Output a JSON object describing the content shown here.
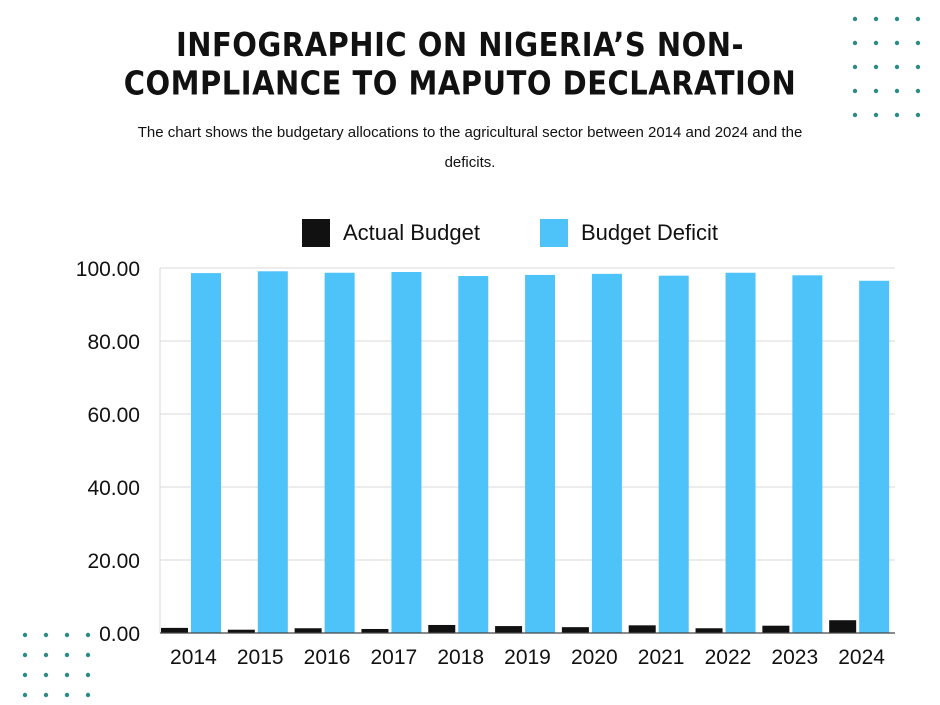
{
  "header": {
    "title": "INFOGRAPHIC ON NIGERIA’S NON-COMPLIANCE TO MAPUTO DECLARATION",
    "subtitle": "The chart shows the budgetary allocations to the agricultural sector between 2014 and 2024 and the deficits."
  },
  "colors": {
    "actual": "#111111",
    "deficit": "#4dc3fa",
    "grid": "#d9d9d9",
    "dots": "#2a8c87"
  },
  "chart_data": {
    "type": "bar",
    "categories": [
      "2014",
      "2015",
      "2016",
      "2017",
      "2018",
      "2019",
      "2020",
      "2021",
      "2022",
      "2023",
      "2024"
    ],
    "series": [
      {
        "name": "Actual Budget",
        "values": [
          1.4,
          0.9,
          1.3,
          1.1,
          2.2,
          1.9,
          1.6,
          2.1,
          1.3,
          2.0,
          3.5
        ]
      },
      {
        "name": "Budget Deficit",
        "values": [
          98.6,
          99.1,
          98.7,
          98.9,
          97.8,
          98.1,
          98.4,
          97.9,
          98.7,
          98.0,
          96.5
        ]
      }
    ],
    "yticks": [
      "0.00",
      "20.00",
      "40.00",
      "60.00",
      "80.00",
      "100.00"
    ],
    "ylim": [
      0,
      100
    ],
    "grid": true,
    "legend": "top-center"
  }
}
